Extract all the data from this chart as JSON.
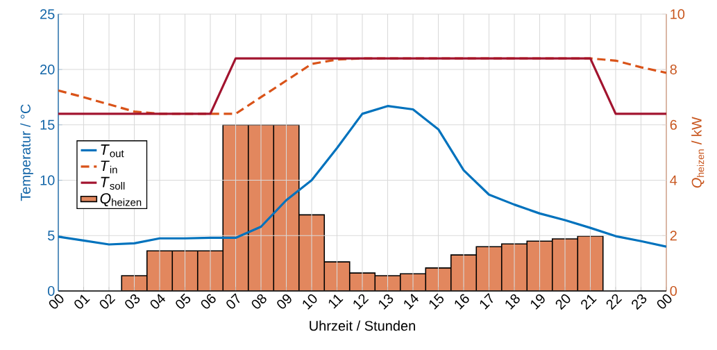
{
  "chart_data": {
    "type": "line",
    "xlabel": "Uhrzeit / Stunden",
    "ylabel": "Temperatur / °C",
    "y2label": "*Q*$_{heizen}$ / kW",
    "xlim": [
      0,
      24
    ],
    "xticks": [
      {
        "value": 0,
        "label": "00"
      },
      {
        "value": 1,
        "label": "01"
      },
      {
        "value": 2,
        "label": "02"
      },
      {
        "value": 3,
        "label": "03"
      },
      {
        "value": 4,
        "label": "04"
      },
      {
        "value": 5,
        "label": "05"
      },
      {
        "value": 6,
        "label": "06"
      },
      {
        "value": 7,
        "label": "07"
      },
      {
        "value": 8,
        "label": "08"
      },
      {
        "value": 9,
        "label": "09"
      },
      {
        "value": 10,
        "label": "10"
      },
      {
        "value": 11,
        "label": "11"
      },
      {
        "value": 12,
        "label": "12"
      },
      {
        "value": 13,
        "label": "13"
      },
      {
        "value": 14,
        "label": "14"
      },
      {
        "value": 15,
        "label": "15"
      },
      {
        "value": 16,
        "label": "16"
      },
      {
        "value": 17,
        "label": "17"
      },
      {
        "value": 18,
        "label": "18"
      },
      {
        "value": 19,
        "label": "19"
      },
      {
        "value": 20,
        "label": "20"
      },
      {
        "value": 21,
        "label": "21"
      },
      {
        "value": 22,
        "label": "22"
      },
      {
        "value": 23,
        "label": "23"
      },
      {
        "value": 24,
        "label": "00"
      }
    ],
    "ylim": [
      0,
      25
    ],
    "yticks": [
      0,
      5,
      10,
      15,
      20,
      25
    ],
    "y2lim": [
      0,
      10
    ],
    "y2ticks": [
      0,
      2,
      4,
      6,
      8,
      10
    ],
    "grid": true,
    "legend": "left",
    "series": [
      {
        "name": "*T*$_{out}$",
        "color": "#0072BD",
        "line_style": "solid",
        "x": [
          0,
          1,
          2,
          3,
          4,
          5,
          6,
          7,
          8,
          9,
          10,
          11,
          12,
          13,
          14,
          15,
          16,
          17,
          18,
          19,
          20,
          21,
          22,
          23,
          24
        ],
        "values": [
          4.9,
          4.55,
          4.2,
          4.3,
          4.75,
          4.75,
          4.8,
          4.8,
          5.8,
          8.2,
          10.0,
          12.9,
          16.0,
          16.7,
          16.4,
          14.6,
          10.9,
          8.7,
          7.8,
          7.0,
          6.4,
          5.7,
          4.95,
          4.5,
          4.0
        ]
      },
      {
        "name": "*T*$_{in}$",
        "color": "#D95319",
        "line_style": "dashed",
        "x": [
          0,
          1,
          2,
          3,
          4,
          5,
          6,
          7,
          8,
          9,
          10,
          11,
          12,
          13,
          14,
          15,
          16,
          17,
          18,
          19,
          20,
          21,
          22,
          23,
          24
        ],
        "values": [
          18.1,
          17.5,
          16.85,
          16.2,
          16.0,
          16.0,
          16.0,
          16.0,
          17.5,
          19.0,
          20.5,
          20.9,
          21,
          21,
          21,
          21,
          21,
          21,
          21,
          21,
          21,
          21,
          20.8,
          20.2,
          19.7
        ]
      },
      {
        "name": "*T*$_{soll}$",
        "color": "#A2142F",
        "line_style": "solid",
        "x": [
          0,
          1,
          2,
          3,
          4,
          5,
          6,
          7,
          8,
          9,
          10,
          11,
          12,
          13,
          14,
          15,
          16,
          17,
          18,
          19,
          20,
          21,
          22,
          23,
          24
        ],
        "values": [
          16,
          16,
          16,
          16,
          16,
          16,
          16,
          21,
          21,
          21,
          21,
          21,
          21,
          21,
          21,
          21,
          21,
          21,
          21,
          21,
          21,
          21,
          16,
          16,
          16
        ]
      },
      {
        "name": "*Q*$_{heizen}$",
        "type": "bar",
        "axis": "y2",
        "color": "#E2875E",
        "x": [
          3,
          4,
          5,
          6,
          7,
          8,
          9,
          10,
          11,
          12,
          13,
          14,
          15,
          16,
          17,
          18,
          19,
          20,
          21
        ],
        "values": [
          0.55,
          1.45,
          1.45,
          1.45,
          6,
          6,
          6,
          2.75,
          1.05,
          0.65,
          0.55,
          0.62,
          0.83,
          1.3,
          1.6,
          1.7,
          1.8,
          1.88,
          1.98
        ]
      }
    ]
  }
}
